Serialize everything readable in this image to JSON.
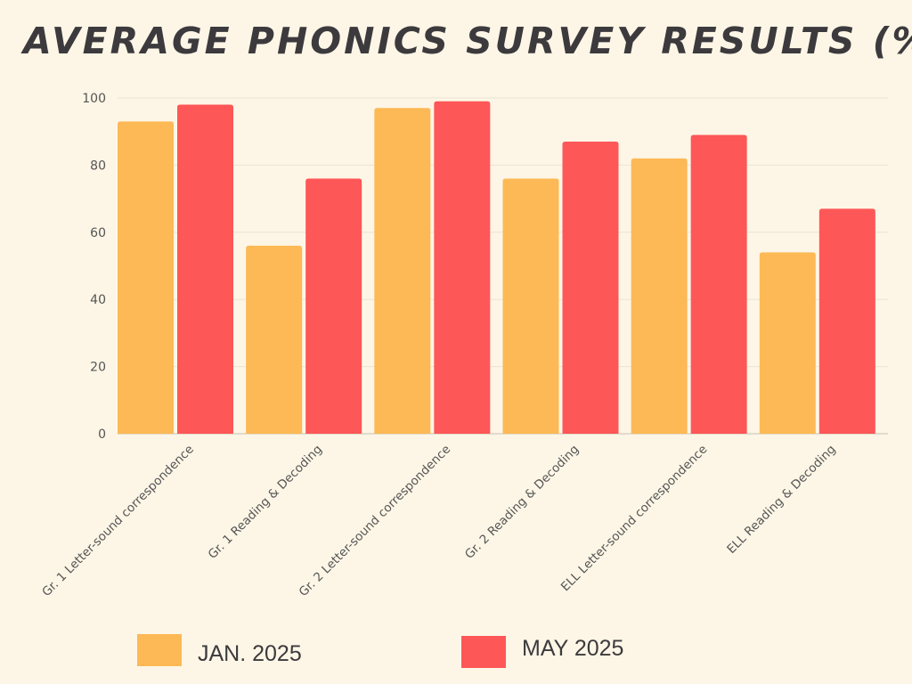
{
  "chart_data": {
    "type": "bar",
    "title": "AVERAGE PHONICS SURVEY RESULTS (%)",
    "xlabel": "",
    "ylabel": "",
    "ylim": [
      0,
      100
    ],
    "yticks": [
      0,
      20,
      40,
      60,
      80,
      100
    ],
    "grid": true,
    "categories": [
      "Gr. 1 Letter-sound correspondence",
      "Gr. 1 Reading & Decoding",
      "Gr. 2 Letter-sound correspondence",
      "Gr. 2 Reading & Decoding",
      "ELL Letter-sound correspondence",
      "ELL Reading & Decoding"
    ],
    "series": [
      {
        "name": "JAN. 2025",
        "color": "#fdb955",
        "values": [
          93,
          56,
          97,
          76,
          82,
          54
        ]
      },
      {
        "name": "MAY 2025",
        "color": "#fe5757",
        "values": [
          98,
          76,
          99,
          87,
          89,
          67
        ]
      }
    ],
    "legend_placement": "bottom"
  }
}
